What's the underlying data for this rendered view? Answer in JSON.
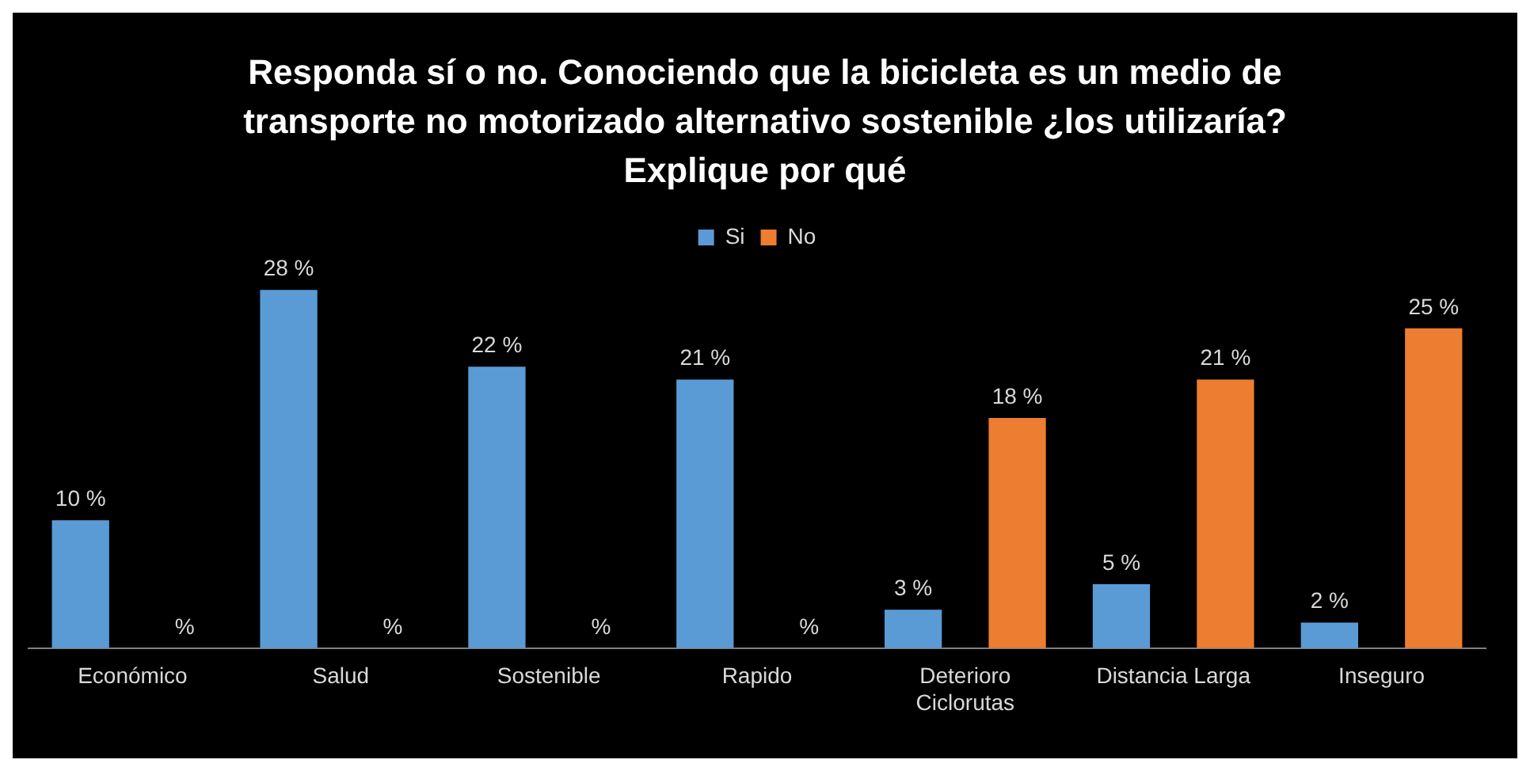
{
  "chart_data": {
    "type": "bar",
    "title": "Responda sí o no. Conociendo que la bicicleta es un medio de transporte no motorizado alternativo sostenible ¿los utilizaría? Explique por qué",
    "categories": [
      "Económico",
      "Salud",
      "Sostenible",
      "Rapido",
      "Deterioro Ciclorutas",
      "Distancia Larga",
      "Inseguro"
    ],
    "series": [
      {
        "name": "Si",
        "color": "#5b9bd5",
        "values": [
          10,
          28,
          22,
          21,
          3,
          5,
          2
        ],
        "value_labels": [
          "10 %",
          "28 %",
          "22 %",
          "21 %",
          "3 %",
          "5 %",
          "2 %"
        ]
      },
      {
        "name": "No",
        "color": "#ed7d31",
        "values": [
          null,
          null,
          null,
          null,
          18,
          21,
          25
        ],
        "value_labels": [
          "%",
          "%",
          "%",
          "%",
          "18 %",
          "21 %",
          "25 %"
        ]
      }
    ],
    "legend": "top"
  }
}
